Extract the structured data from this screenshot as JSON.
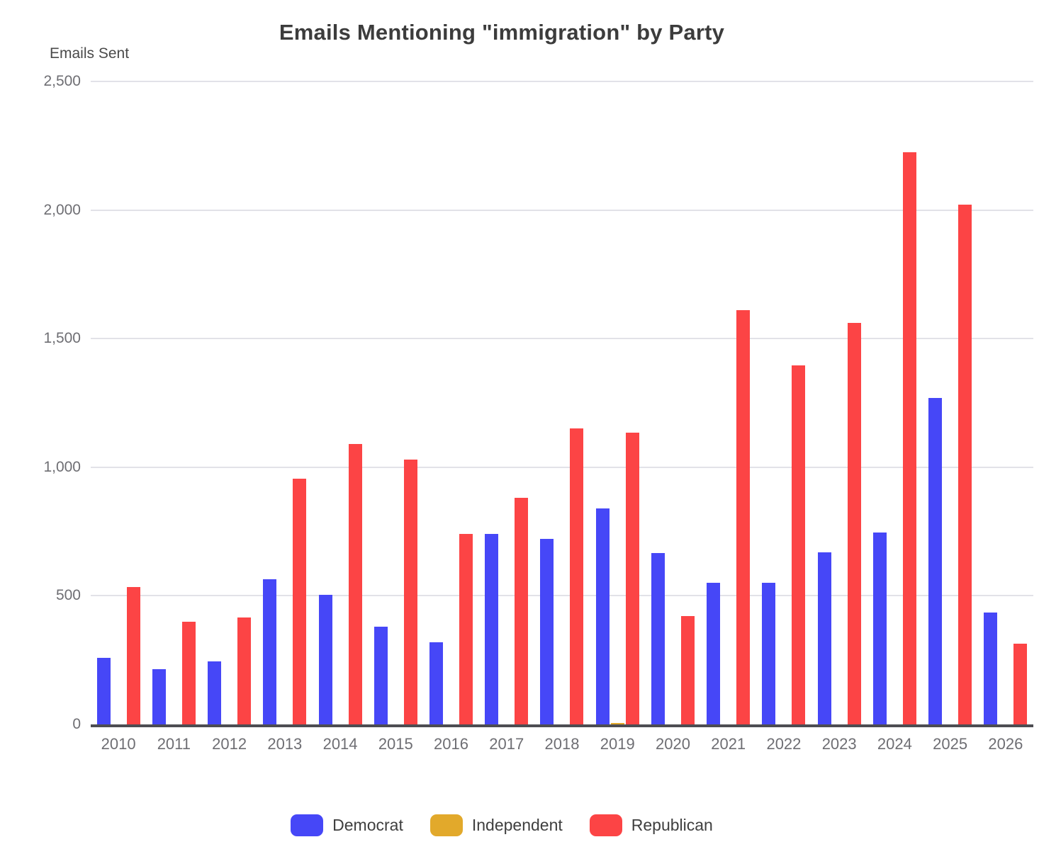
{
  "title": "Emails Mentioning \"immigration\" by Party",
  "y_axis_title": "Emails Sent",
  "colors": {
    "democrat": "#4647F7",
    "independent": "#E2A92B",
    "republican": "#FC4445",
    "gridline": "#E2E2E8",
    "axis_line": "#4D4D52",
    "tick_text": "#6E6E73",
    "title_text": "#3C3C3C"
  },
  "chart_data": {
    "type": "bar",
    "title": "Emails Mentioning \"immigration\" by Party",
    "xlabel": "",
    "ylabel": "Emails Sent",
    "ylim": [
      0,
      2500
    ],
    "ytick_interval": 500,
    "grid": true,
    "legend_position": "bottom",
    "categories": [
      "2010",
      "2011",
      "2012",
      "2013",
      "2014",
      "2015",
      "2016",
      "2017",
      "2018",
      "2019",
      "2020",
      "2021",
      "2022",
      "2023",
      "2024",
      "2025",
      "2026"
    ],
    "series": [
      {
        "name": "Democrat",
        "color": "#4647F7",
        "values": [
          260,
          215,
          245,
          565,
          505,
          380,
          320,
          740,
          720,
          840,
          665,
          550,
          550,
          670,
          745,
          1270,
          435
        ]
      },
      {
        "name": "Independent",
        "color": "#E2A92B",
        "values": [
          0,
          0,
          0,
          0,
          0,
          0,
          0,
          0,
          0,
          5,
          0,
          0,
          0,
          0,
          0,
          0,
          0
        ]
      },
      {
        "name": "Republican",
        "color": "#FC4445",
        "values": [
          535,
          400,
          415,
          955,
          1090,
          1030,
          740,
          880,
          1150,
          1135,
          420,
          1610,
          1395,
          1560,
          2225,
          2020,
          315
        ]
      }
    ]
  }
}
